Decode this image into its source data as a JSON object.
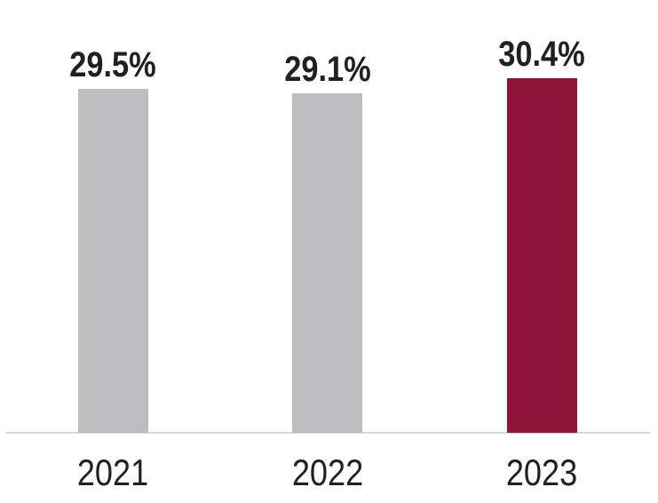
{
  "chart_data": {
    "type": "bar",
    "title": "",
    "xlabel": "",
    "ylabel": "",
    "categories": [
      "2021",
      "2022",
      "2023"
    ],
    "values": [
      29.5,
      29.1,
      30.4
    ],
    "value_labels": [
      "29.5%",
      "29.1%",
      "30.4%"
    ],
    "bar_colors": [
      "#BDBDBF",
      "#BDBDBF",
      "#8F1438"
    ],
    "highlighted_index": 2,
    "ylim": [
      0,
      32
    ],
    "grid": false,
    "legend": false,
    "axis_line_color": "#D9D9D9",
    "text_color": "#231F20",
    "background_color": "#FFFFFF"
  }
}
